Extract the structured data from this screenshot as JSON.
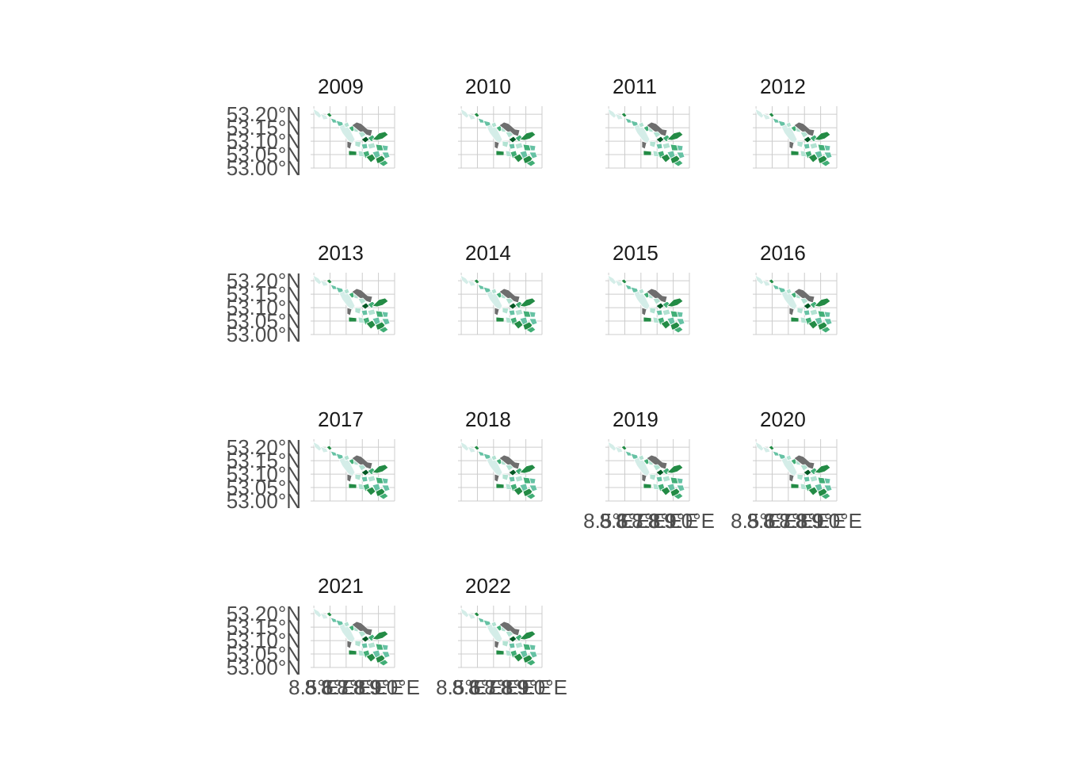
{
  "chart_data": {
    "type": "facet-map",
    "ncol": 4,
    "panels": [
      "2009",
      "2010",
      "2011",
      "2012",
      "2013",
      "2014",
      "2015",
      "2016",
      "2017",
      "2018",
      "2019",
      "2020",
      "2021",
      "2022"
    ],
    "y_ticks": [
      "53.20°N",
      "53.15°N",
      "53.10°N",
      "53.05°N",
      "53.00°N"
    ],
    "y_values": [
      53.2,
      53.15,
      53.1,
      53.05,
      53.0
    ],
    "x_ticks": [
      "8.5°E",
      "8.6°E",
      "8.7°E",
      "8.8°E",
      "8.9°E",
      "9.0°E"
    ],
    "x_values": [
      8.5,
      8.6,
      8.7,
      8.8,
      8.9,
      9.0
    ],
    "ylim": [
      53.0,
      53.23
    ],
    "xlim": [
      8.48,
      9.0
    ],
    "y_axis_panels": [
      "2009",
      "2013",
      "2017",
      "2021"
    ],
    "x_axis_panels": [
      "2019",
      "2020",
      "2021",
      "2022"
    ],
    "grid": true,
    "legend": "none",
    "fill_colors": {
      "very_light": "#d4ede8",
      "light": "#b2e2d2",
      "medium": "#66c2a4",
      "medium_dark": "#41ae76",
      "dark": "#238b45",
      "darkest": "#005824",
      "no_data": "#6e6e6e",
      "border": "#ffffff",
      "gridline": "#cccccc",
      "text": "#1a1a1a",
      "axis_text": "#4d4d4d"
    }
  }
}
